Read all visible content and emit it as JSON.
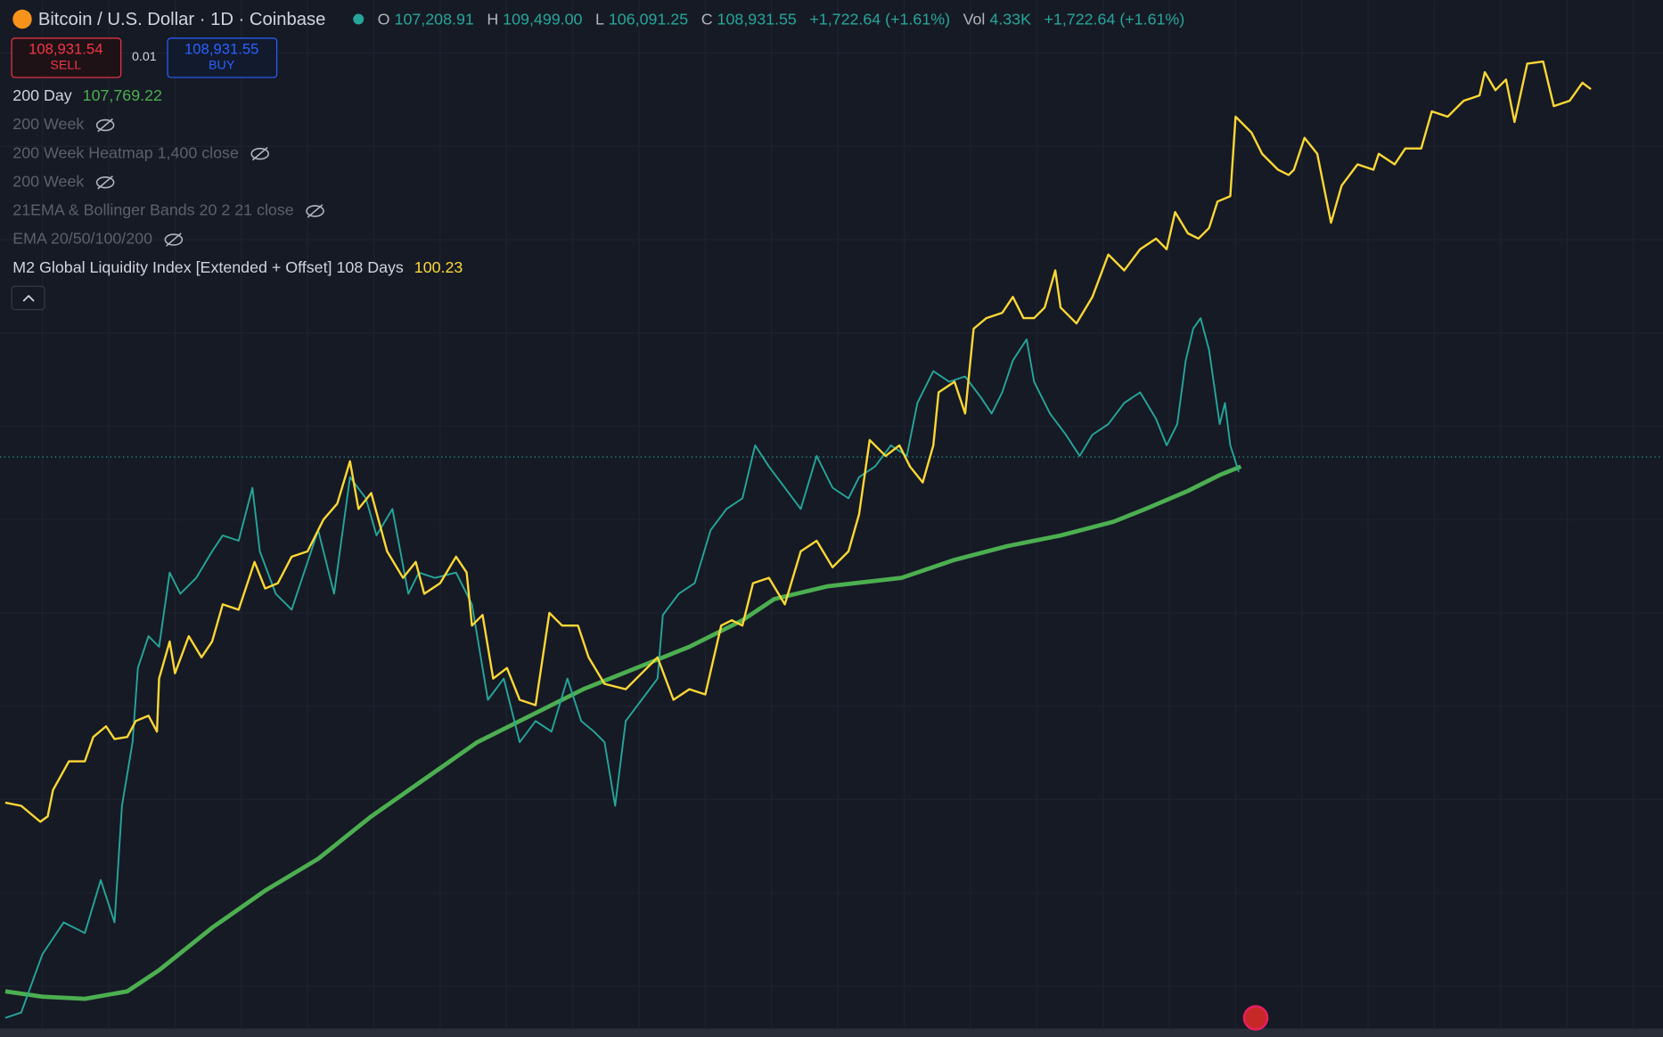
{
  "header": {
    "symbol": "Bitcoin / U.S. Dollar · 1D · Coinbase",
    "open_label": "O",
    "open": "107,208.91",
    "high_label": "H",
    "high": "109,499.00",
    "low_label": "L",
    "low": "106,091.25",
    "close_label": "C",
    "close": "108,931.55",
    "change": "+1,722.64 (+1.61%)",
    "vol_label": "Vol",
    "vol": "4.33K",
    "vol_change": "+1,722.64 (+1.61%)"
  },
  "trade": {
    "sell_price": "108,931.54",
    "sell_label": "SELL",
    "spread": "0.01",
    "buy_price": "108,931.55",
    "buy_label": "BUY"
  },
  "indicators": [
    {
      "name": "200 Day",
      "value": "107,769.22"
    },
    {
      "name": "200 Week"
    },
    {
      "name": "200 Week Heatmap 1,400 close"
    },
    {
      "name": "200 Week"
    },
    {
      "name": "21EMA & Bollinger Bands 20 2 21 close"
    },
    {
      "name": "EMA 20/50/100/200"
    },
    {
      "name": "M2 Global Liquidity Index [Extended + Offset] 108 Days",
      "value": "100.23"
    }
  ]
}
